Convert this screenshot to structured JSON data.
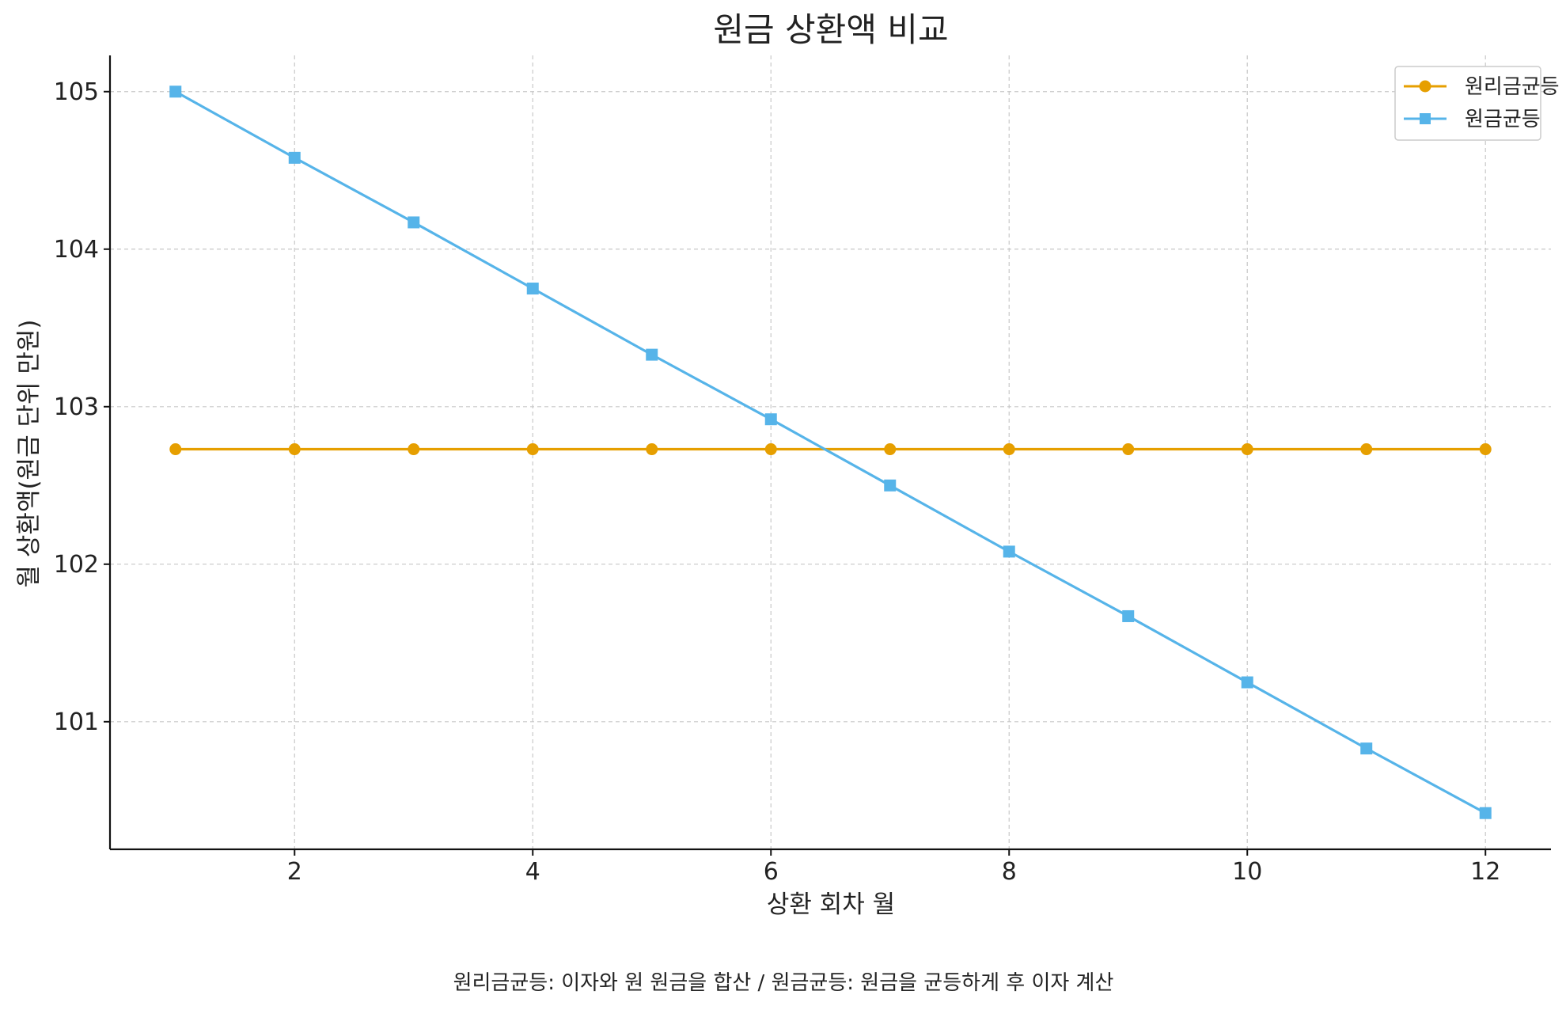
{
  "chart_data": {
    "type": "line",
    "title": "원금 상환액 비교",
    "xlabel": "상환 회차 월",
    "ylabel": "월 상환액(원금 단위 만원)",
    "caption": "원리금균등: 이자와 원 원금을 합산 / 원금균등: 원금을 균등하게 후 이자 계산",
    "x": [
      1,
      2,
      3,
      4,
      5,
      6,
      7,
      8,
      9,
      10,
      11,
      12
    ],
    "xlim": [
      0.45,
      12.55
    ],
    "ylim": [
      100.19,
      105.23
    ],
    "xticks": [
      2,
      4,
      6,
      8,
      10,
      12
    ],
    "yticks": [
      101,
      102,
      103,
      104,
      105
    ],
    "grid": true,
    "legend_position": "top-right",
    "series": [
      {
        "name": "원리금균등",
        "color": "#E69F00",
        "marker": "circle",
        "values": [
          102.73,
          102.73,
          102.73,
          102.73,
          102.73,
          102.73,
          102.73,
          102.73,
          102.73,
          102.73,
          102.73,
          102.73
        ]
      },
      {
        "name": "원금균등",
        "color": "#56B4E9",
        "marker": "square",
        "values": [
          105.0,
          104.58,
          104.17,
          103.75,
          103.33,
          102.92,
          102.5,
          102.08,
          101.67,
          101.25,
          100.83,
          100.42
        ]
      }
    ]
  }
}
